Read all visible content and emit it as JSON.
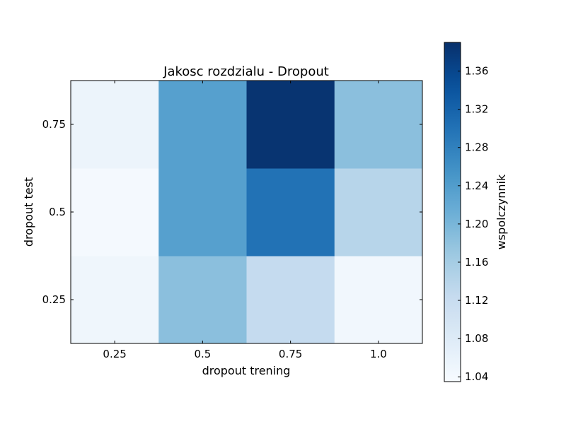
{
  "chart_data": {
    "type": "heatmap",
    "title": "Jakosc rozdzialu - Dropout",
    "xlabel": "dropout trening",
    "ylabel": "dropout test",
    "x_categories": [
      "0.25",
      "0.5",
      "0.75",
      "1.0"
    ],
    "y_categories": [
      "0.25",
      "0.5",
      "0.75"
    ],
    "values": [
      [
        1.05,
        1.185,
        1.125,
        1.045
      ],
      [
        1.04,
        1.235,
        1.3,
        1.14
      ],
      [
        1.055,
        1.235,
        1.385,
        1.185
      ]
    ],
    "colorbar": {
      "label": "wspolczynnik",
      "range": [
        1.035,
        1.39
      ],
      "ticks": [
        "1.04",
        "1.08",
        "1.12",
        "1.16",
        "1.20",
        "1.24",
        "1.28",
        "1.32",
        "1.36"
      ],
      "colormap": "Blues"
    },
    "grid": false
  }
}
